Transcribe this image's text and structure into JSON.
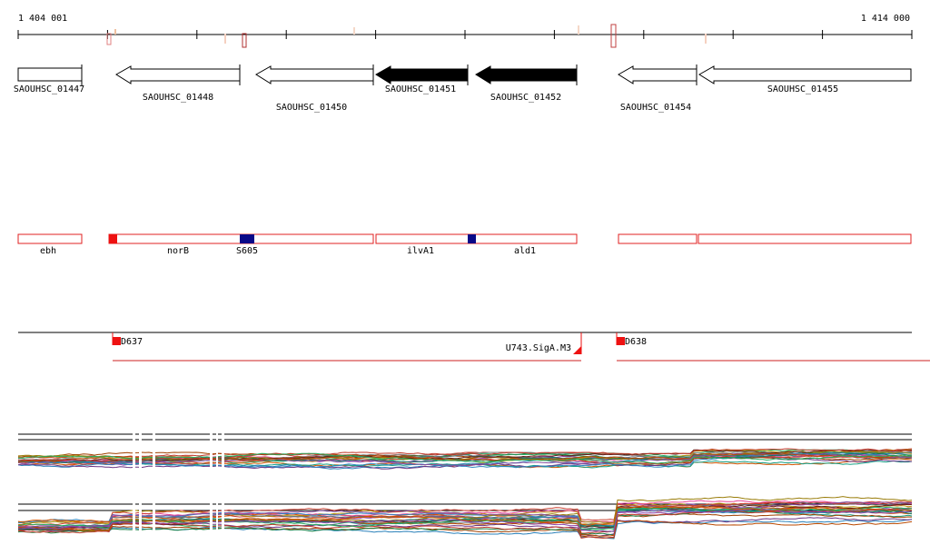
{
  "axis": {
    "start_label": "1 404 001",
    "end_label": "1 414 000"
  },
  "genes": [
    {
      "id": "SAOUHSC_01447",
      "strand": "+",
      "filled": false
    },
    {
      "id": "SAOUHSC_01448",
      "strand": "-",
      "filled": false
    },
    {
      "id": "SAOUHSC_01450",
      "strand": "-",
      "filled": false
    },
    {
      "id": "SAOUHSC_01451",
      "strand": "-",
      "filled": true
    },
    {
      "id": "SAOUHSC_01452",
      "strand": "-",
      "filled": true
    },
    {
      "id": "SAOUHSC_01454",
      "strand": "-",
      "filled": false
    },
    {
      "id": "SAOUHSC_01455",
      "strand": "-",
      "filled": false
    }
  ],
  "operons": [
    {
      "label": "ebh"
    },
    {
      "label": "norB"
    },
    {
      "label": "S605"
    },
    {
      "label": "ilvA1"
    },
    {
      "label": "ald1"
    }
  ],
  "segments": [
    {
      "label": "D637"
    },
    {
      "label": "U743.SigA.M3"
    },
    {
      "label": "D638"
    }
  ],
  "colors": {
    "operon_border": "#e02020",
    "marker_red": "#ee1111",
    "marker_blue": "#0a0a88",
    "gene_fill": "#000000",
    "segment_line": "#cc2222"
  }
}
